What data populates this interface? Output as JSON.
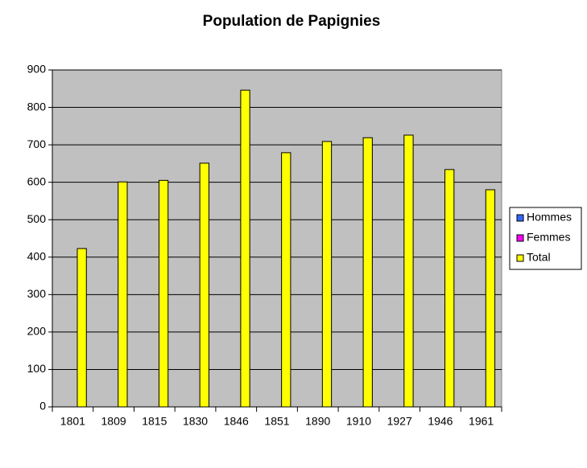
{
  "chart_data": {
    "type": "bar",
    "title": "Population de Papignies",
    "categories": [
      "1801",
      "1809",
      "1815",
      "1830",
      "1846",
      "1851",
      "1890",
      "1910",
      "1927",
      "1946",
      "1961"
    ],
    "series": [
      {
        "name": "Hommes",
        "color": "#3366ff",
        "values": [
          null,
          null,
          null,
          null,
          null,
          null,
          null,
          null,
          null,
          null,
          null
        ]
      },
      {
        "name": "Femmes",
        "color": "#ff00ff",
        "values": [
          null,
          null,
          null,
          null,
          null,
          null,
          null,
          null,
          null,
          null,
          null
        ]
      },
      {
        "name": "Total",
        "color": "#ffff00",
        "values": [
          423,
          601,
          605,
          651,
          846,
          679,
          709,
          719,
          726,
          634,
          580
        ]
      }
    ],
    "ylim": [
      0,
      900
    ],
    "yticks": [
      0,
      100,
      200,
      300,
      400,
      500,
      600,
      700,
      800,
      900
    ],
    "grid": true,
    "legend": "right"
  }
}
